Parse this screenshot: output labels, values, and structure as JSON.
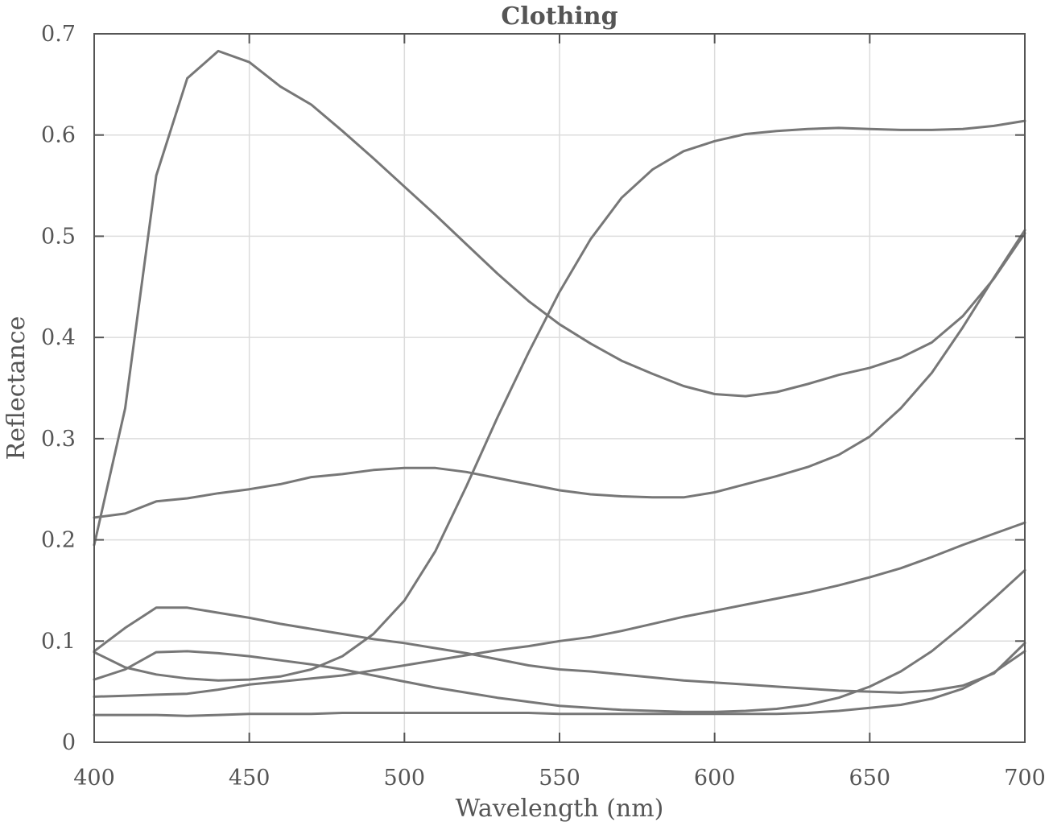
{
  "chart_data": {
    "type": "line",
    "title": "Clothing",
    "xlabel": "Wavelength (nm)",
    "ylabel": "Reflectance",
    "xlim": [
      400,
      700
    ],
    "ylim": [
      0,
      0.7
    ],
    "grid": true,
    "legend": "none",
    "line_color": "#777777",
    "x_ticks": [
      400,
      450,
      500,
      550,
      600,
      650,
      700
    ],
    "x_tick_labels": [
      "400",
      "450",
      "500",
      "550",
      "600",
      "650",
      "700"
    ],
    "y_ticks": [
      0,
      0.1,
      0.2,
      0.3,
      0.4,
      0.5,
      0.6,
      0.7
    ],
    "y_tick_labels": [
      "0",
      "0.1",
      "0.2",
      "0.3",
      "0.4",
      "0.5",
      "0.6",
      "0.7"
    ],
    "x": [
      400,
      410,
      420,
      430,
      440,
      450,
      460,
      470,
      480,
      490,
      500,
      510,
      520,
      530,
      540,
      550,
      560,
      570,
      580,
      590,
      600,
      610,
      620,
      630,
      640,
      650,
      660,
      670,
      680,
      690,
      700
    ],
    "series": [
      {
        "values": [
          0.195,
          0.33,
          0.56,
          0.656,
          0.683,
          0.672,
          0.648,
          0.63,
          0.604,
          0.577,
          0.549,
          0.521,
          0.492,
          0.463,
          0.436,
          0.413,
          0.394,
          0.377,
          0.364,
          0.352,
          0.344,
          0.342,
          0.346,
          0.354,
          0.363,
          0.37,
          0.38,
          0.395,
          0.421,
          0.458,
          0.503
        ]
      },
      {
        "values": [
          0.062,
          0.072,
          0.089,
          0.09,
          0.088,
          0.085,
          0.081,
          0.077,
          0.072,
          0.066,
          0.06,
          0.054,
          0.049,
          0.044,
          0.04,
          0.036,
          0.034,
          0.032,
          0.031,
          0.03,
          0.03,
          0.031,
          0.033,
          0.037,
          0.044,
          0.055,
          0.07,
          0.09,
          0.115,
          0.142,
          0.17
        ]
      },
      {
        "values": [
          0.089,
          0.074,
          0.067,
          0.063,
          0.061,
          0.062,
          0.065,
          0.072,
          0.085,
          0.107,
          0.14,
          0.189,
          0.253,
          0.321,
          0.385,
          0.445,
          0.497,
          0.538,
          0.566,
          0.584,
          0.594,
          0.601,
          0.604,
          0.606,
          0.607,
          0.606,
          0.605,
          0.605,
          0.606,
          0.609,
          0.614
        ]
      },
      {
        "values": [
          0.222,
          0.226,
          0.238,
          0.241,
          0.246,
          0.25,
          0.255,
          0.262,
          0.265,
          0.269,
          0.271,
          0.271,
          0.267,
          0.261,
          0.255,
          0.249,
          0.245,
          0.243,
          0.242,
          0.242,
          0.247,
          0.255,
          0.263,
          0.272,
          0.284,
          0.302,
          0.33,
          0.365,
          0.41,
          0.459,
          0.506
        ]
      },
      {
        "values": [
          0.09,
          0.113,
          0.133,
          0.133,
          0.128,
          0.123,
          0.117,
          0.112,
          0.107,
          0.102,
          0.098,
          0.093,
          0.088,
          0.082,
          0.076,
          0.072,
          0.07,
          0.067,
          0.064,
          0.061,
          0.059,
          0.057,
          0.055,
          0.053,
          0.051,
          0.05,
          0.049,
          0.051,
          0.056,
          0.068,
          0.098
        ]
      },
      {
        "values": [
          0.045,
          0.046,
          0.047,
          0.048,
          0.052,
          0.057,
          0.06,
          0.063,
          0.066,
          0.071,
          0.076,
          0.081,
          0.086,
          0.091,
          0.095,
          0.1,
          0.104,
          0.11,
          0.117,
          0.124,
          0.13,
          0.136,
          0.142,
          0.148,
          0.155,
          0.163,
          0.172,
          0.183,
          0.195,
          0.206,
          0.217
        ]
      },
      {
        "values": [
          0.027,
          0.027,
          0.027,
          0.026,
          0.027,
          0.028,
          0.028,
          0.028,
          0.029,
          0.029,
          0.029,
          0.029,
          0.029,
          0.029,
          0.029,
          0.028,
          0.028,
          0.028,
          0.028,
          0.028,
          0.028,
          0.028,
          0.028,
          0.029,
          0.031,
          0.034,
          0.037,
          0.043,
          0.053,
          0.069,
          0.09
        ]
      }
    ]
  }
}
